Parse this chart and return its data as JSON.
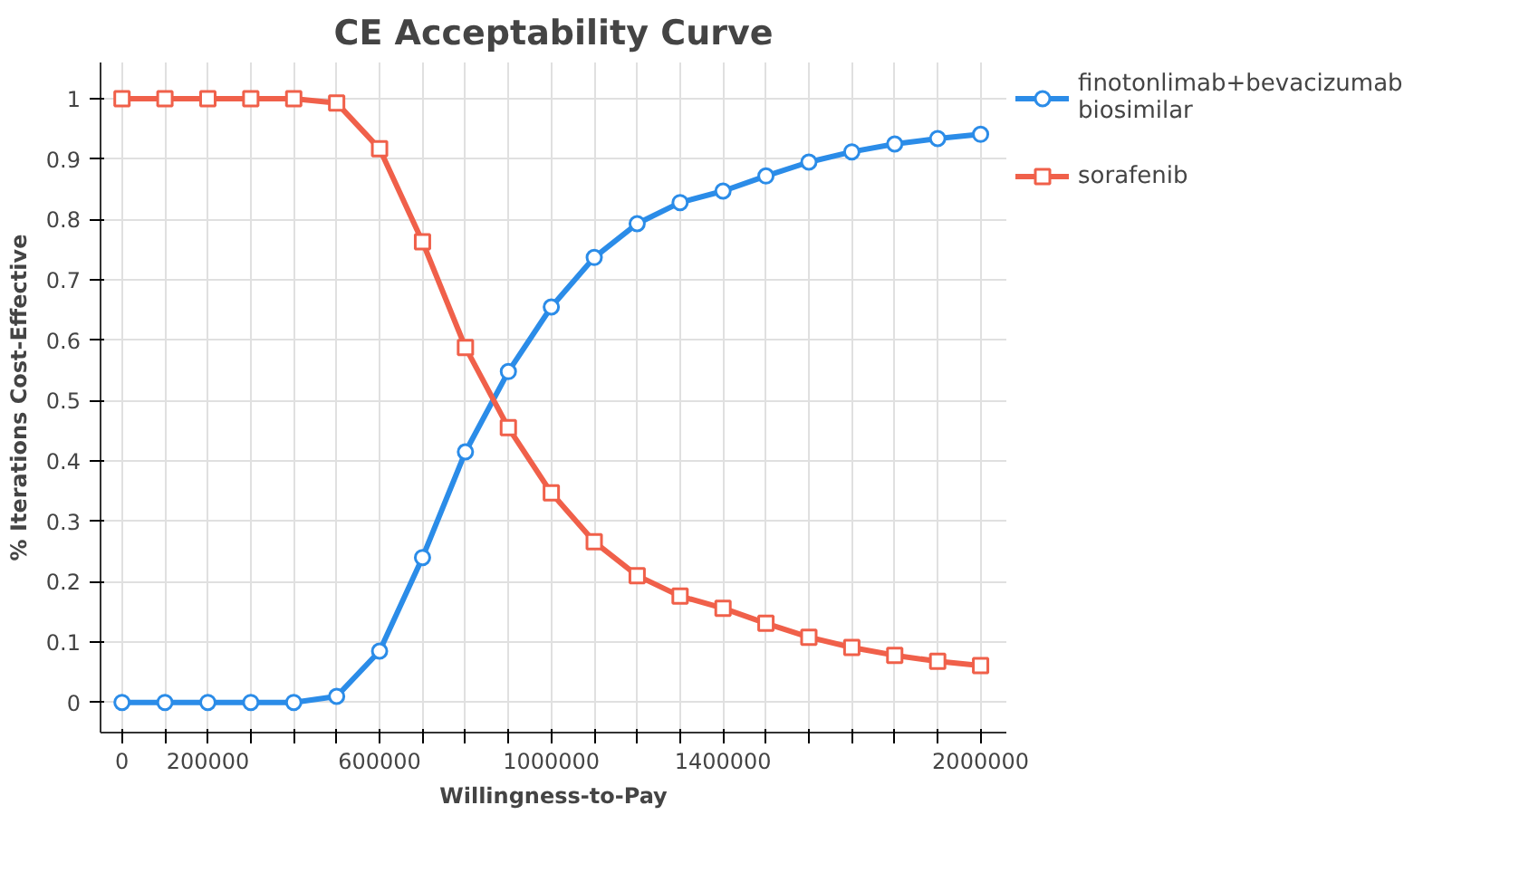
{
  "chart_data": {
    "type": "line",
    "title": "CE Acceptability Curve",
    "xlabel": "Willingness-to-Pay",
    "ylabel": "% Iterations Cost-Effective",
    "x": [
      0,
      100000,
      200000,
      300000,
      400000,
      500000,
      600000,
      700000,
      800000,
      900000,
      1000000,
      1100000,
      1200000,
      1300000,
      1400000,
      1500000,
      1600000,
      1700000,
      1800000,
      1900000,
      2000000
    ],
    "series": [
      {
        "name": "finotonlimab+bevacizumab biosimilar",
        "color": "#2b8ce8",
        "marker": "circle",
        "values": [
          0,
          0,
          0,
          0,
          0,
          0.01,
          0.085,
          0.24,
          0.415,
          0.548,
          0.655,
          0.737,
          0.793,
          0.828,
          0.847,
          0.872,
          0.895,
          0.912,
          0.925,
          0.934,
          0.941
        ]
      },
      {
        "name": "sorafenib",
        "color": "#f0604a",
        "marker": "square",
        "values": [
          1,
          1,
          1,
          1,
          1,
          0.993,
          0.917,
          0.763,
          0.588,
          0.455,
          0.347,
          0.266,
          0.21,
          0.176,
          0.156,
          0.131,
          0.108,
          0.091,
          0.078,
          0.068,
          0.061
        ]
      }
    ],
    "xlim": [
      -50000,
      2060000
    ],
    "ylim": [
      -0.05,
      1.06
    ],
    "xticks": [
      0,
      {
        "value": 100000,
        "label": null
      },
      200000,
      {
        "value": 300000,
        "label": null
      },
      {
        "value": 400000,
        "label": null
      },
      {
        "value": 500000,
        "label": null
      },
      600000,
      {
        "value": 700000,
        "label": null
      },
      {
        "value": 800000,
        "label": null
      },
      {
        "value": 900000,
        "label": null
      },
      1000000,
      {
        "value": 1100000,
        "label": null
      },
      {
        "value": 1200000,
        "label": null
      },
      {
        "value": 1300000,
        "label": null
      },
      1400000,
      {
        "value": 1500000,
        "label": null
      },
      {
        "value": 1600000,
        "label": null
      },
      {
        "value": 1700000,
        "label": null
      },
      {
        "value": 1800000,
        "label": null
      },
      {
        "value": 1900000,
        "label": null
      },
      2000000
    ],
    "yticks": [
      0,
      0.1,
      0.2,
      0.3,
      0.4,
      0.5,
      0.6,
      0.7,
      0.8,
      0.9,
      1
    ],
    "grid": true,
    "legend": "right",
    "line_style": "solid"
  }
}
